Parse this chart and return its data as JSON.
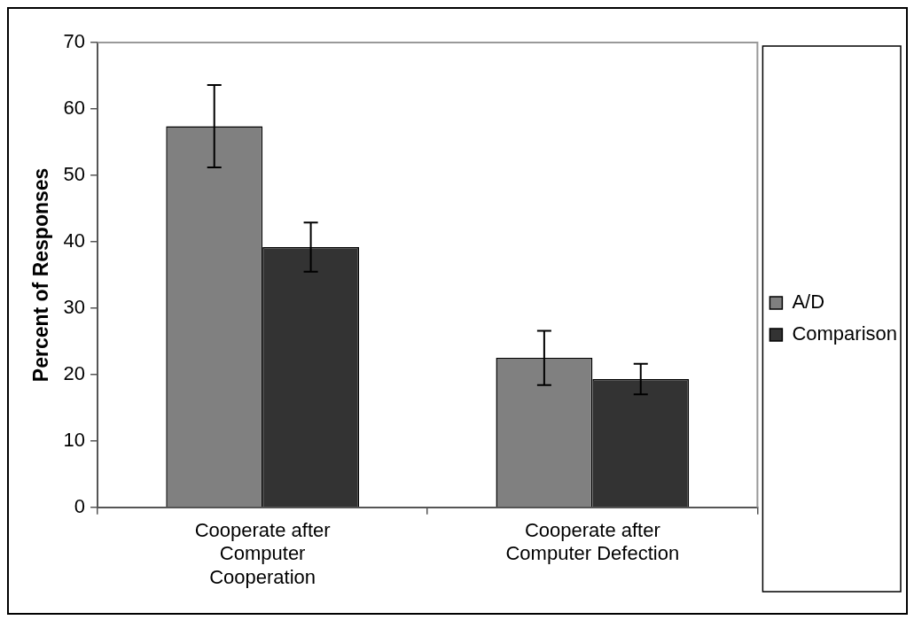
{
  "chart_data": {
    "type": "bar",
    "ylabel": "Percent of Responses",
    "categories": [
      "Cooperate after Computer Cooperation",
      "Cooperate after Computer Defection"
    ],
    "series": [
      {
        "name": "A/D",
        "color": "#808080",
        "values": [
          57.4,
          22.5
        ],
        "errors": [
          6.2,
          4.1
        ]
      },
      {
        "name": "Comparison",
        "color": "#333333",
        "values": [
          39.2,
          19.3
        ],
        "errors": [
          3.7,
          2.3
        ]
      }
    ],
    "ylim": [
      0,
      70
    ],
    "yticks": [
      0,
      10,
      20,
      30,
      40,
      50,
      60,
      70
    ],
    "grid": false,
    "legend": "right"
  }
}
